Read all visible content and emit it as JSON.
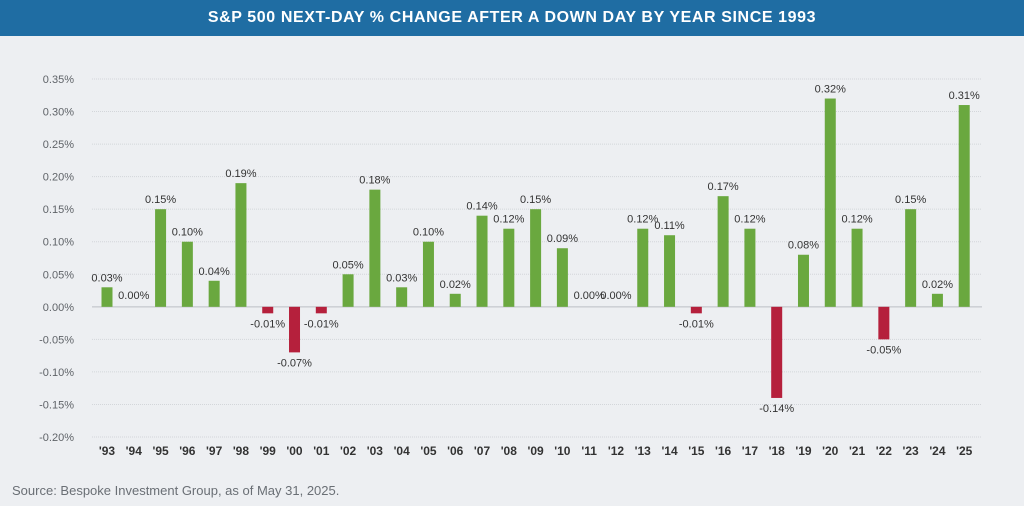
{
  "title": "S&P 500 NEXT-DAY % CHANGE AFTER A DOWN DAY BY YEAR SINCE 1993",
  "source": "Source: Bespoke Investment Group, as of May 31, 2025.",
  "colors": {
    "title_bar": "#1f6da3",
    "background": "#edeff2",
    "positive": "#6aa83f",
    "negative": "#b5203c",
    "grid": "#d3d6da"
  },
  "chart_data": {
    "type": "bar",
    "categories": [
      "'93",
      "'94",
      "'95",
      "'96",
      "'97",
      "'98",
      "'99",
      "'00",
      "'01",
      "'02",
      "'03",
      "'04",
      "'05",
      "'06",
      "'07",
      "'08",
      "'09",
      "'10",
      "'11",
      "'12",
      "'13",
      "'14",
      "'15",
      "'16",
      "'17",
      "'18",
      "'19",
      "'20",
      "'21",
      "'22",
      "'23",
      "'24",
      "'25"
    ],
    "values": [
      0.03,
      0.0,
      0.15,
      0.1,
      0.04,
      0.19,
      -0.01,
      -0.07,
      -0.01,
      0.05,
      0.18,
      0.03,
      0.1,
      0.02,
      0.14,
      0.12,
      0.15,
      0.09,
      0.0,
      0.0,
      0.12,
      0.11,
      -0.01,
      0.17,
      0.12,
      -0.14,
      0.08,
      0.32,
      0.12,
      -0.05,
      0.15,
      0.02,
      0.31
    ],
    "data_labels": [
      "0.03%",
      "0.00%",
      "0.15%",
      "0.10%",
      "0.04%",
      "0.19%",
      "-0.01%",
      "-0.07%",
      "-0.01%",
      "0.05%",
      "0.18%",
      "0.03%",
      "0.10%",
      "0.02%",
      "0.14%",
      "0.12%",
      "0.15%",
      "0.09%",
      "0.00%",
      "0.00%",
      "0.12%",
      "0.11%",
      "-0.01%",
      "0.17%",
      "0.12%",
      "-0.14%",
      "0.08%",
      "0.32%",
      "0.12%",
      "-0.05%",
      "0.15%",
      "0.02%",
      "0.31%"
    ],
    "y_ticks": [
      0.35,
      0.3,
      0.25,
      0.2,
      0.15,
      0.1,
      0.05,
      0.0,
      -0.05,
      -0.1,
      -0.15,
      -0.2
    ],
    "y_tick_labels": [
      "0.35%",
      "0.30%",
      "0.25%",
      "0.20%",
      "0.15%",
      "0.10%",
      "0.05%",
      "0.00%",
      "-0.05%",
      "-0.10%",
      "-0.15%",
      "-0.20%"
    ],
    "ylim": [
      -0.2,
      0.35
    ],
    "xlabel": "",
    "ylabel": "",
    "grid": true,
    "legend": "none"
  }
}
